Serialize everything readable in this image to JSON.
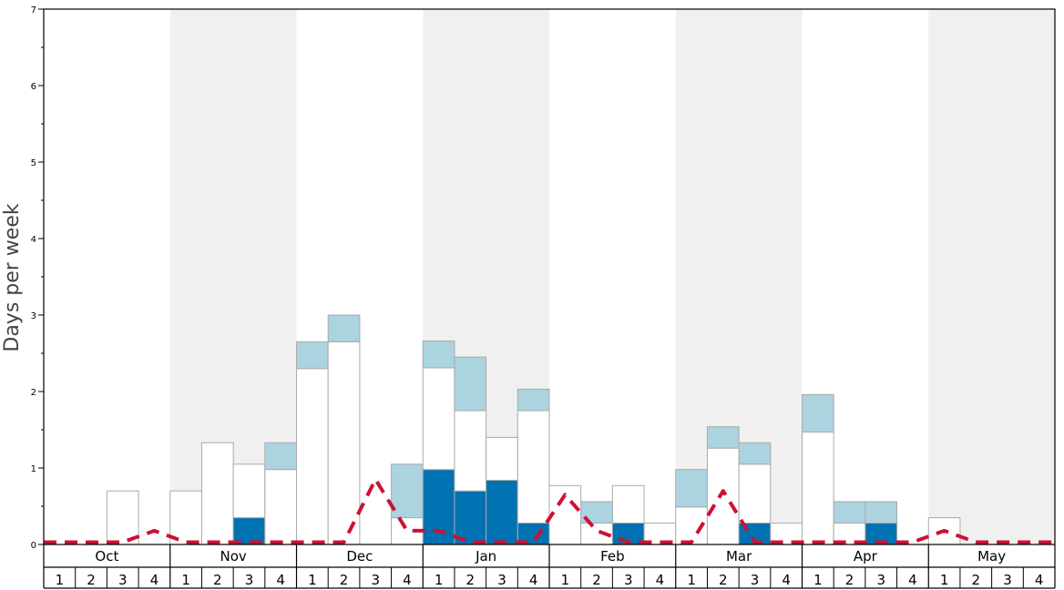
{
  "chart_data": {
    "type": "bar",
    "ylabel": "Days per week",
    "ylim": [
      0,
      7
    ],
    "yticks": [
      0,
      1,
      2,
      3,
      4,
      5,
      6,
      7
    ],
    "months": [
      "Oct",
      "Nov",
      "Dec",
      "Jan",
      "Feb",
      "Mar",
      "Apr",
      "May"
    ],
    "week_labels": [
      "1",
      "2",
      "3",
      "4"
    ],
    "colors": {
      "dark": "#0072b2",
      "white": "#ffffff",
      "light": "#abd3e0",
      "line": "#cc1133",
      "band": "#f0f0f0",
      "bar_border": "#aaaaaa"
    },
    "series": [
      {
        "color": "dark",
        "values": [
          0,
          0,
          0,
          0,
          0,
          0,
          0.35,
          0,
          0,
          0,
          0,
          0,
          0.98,
          0.7,
          0.84,
          0.28,
          0,
          0,
          0.28,
          0,
          0,
          0,
          0.28,
          0,
          0,
          0,
          0.28,
          0,
          0,
          0,
          0,
          0
        ]
      },
      {
        "color": "white",
        "values": [
          0,
          0,
          0.7,
          0,
          0.7,
          1.33,
          0.7,
          0.98,
          2.3,
          2.65,
          0,
          0.35,
          1.33,
          1.05,
          0.56,
          1.47,
          0.77,
          0.28,
          0.49,
          0.28,
          0.49,
          1.26,
          0.77,
          0.28,
          1.47,
          0.28,
          0,
          0,
          0.35,
          0,
          0,
          0
        ]
      },
      {
        "color": "light",
        "values": [
          0,
          0,
          0,
          0,
          0,
          0,
          0,
          0.35,
          0.35,
          0.35,
          0,
          0.7,
          0.35,
          0.7,
          0,
          0.28,
          0,
          0.28,
          0,
          0,
          0.49,
          0.28,
          0.28,
          0,
          0.49,
          0.28,
          0.28,
          0,
          0,
          0,
          0,
          0
        ]
      }
    ],
    "line": {
      "color": "line",
      "style": "dashed",
      "values": [
        0.03,
        0.03,
        0.03,
        0.18,
        0.03,
        0.03,
        0.03,
        0.03,
        0.03,
        0.03,
        0.85,
        0.18,
        0.18,
        0.03,
        0.03,
        0.03,
        0.65,
        0.18,
        0.03,
        0.03,
        0.03,
        0.7,
        0.03,
        0.03,
        0.03,
        0.03,
        0.03,
        0.03,
        0.18,
        0.03,
        0.03,
        0.03
      ]
    }
  }
}
